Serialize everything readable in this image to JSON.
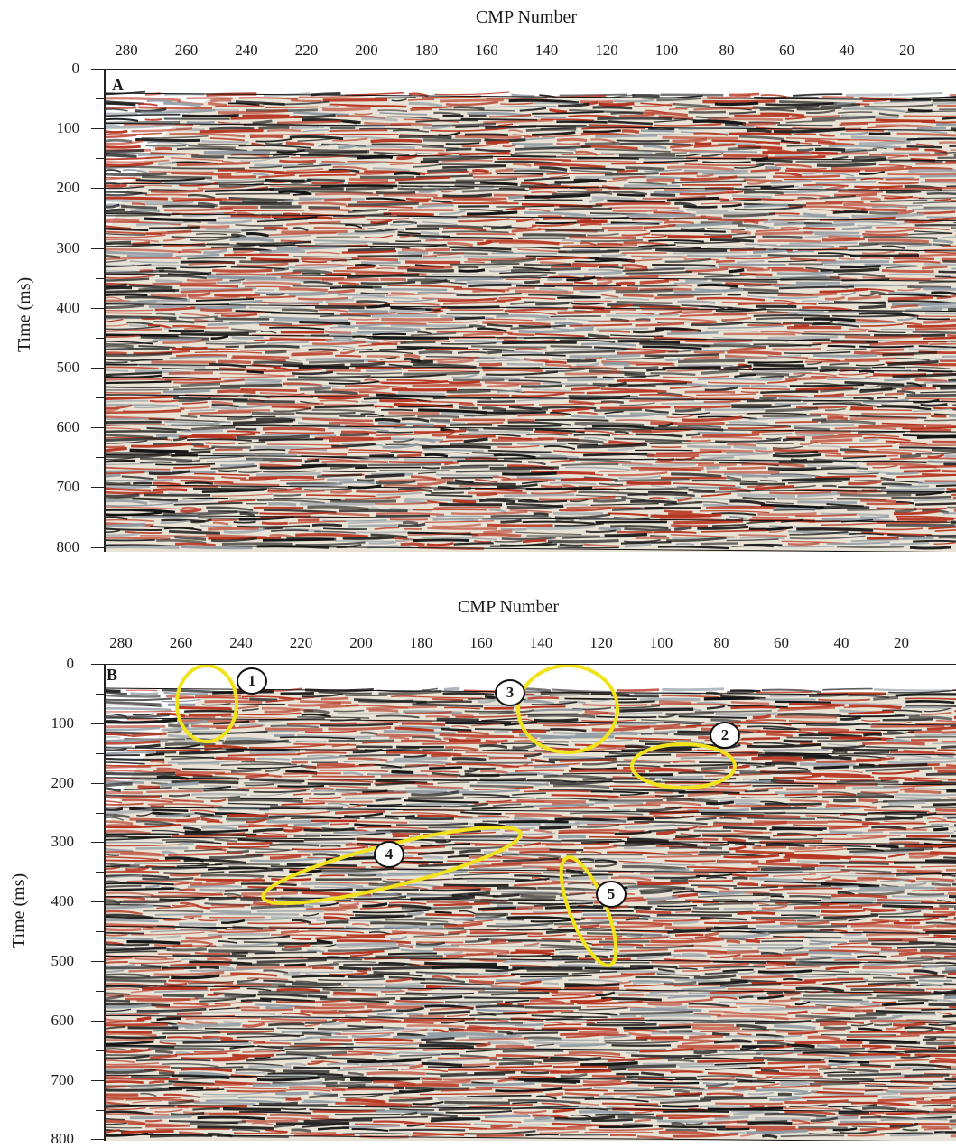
{
  "figure": {
    "panels": [
      {
        "id": "A",
        "label": "A",
        "x_axis_title": "CMP Number",
        "y_axis_title": "Time (ms)",
        "x_ticks": [
          "280",
          "260",
          "240",
          "220",
          "200",
          "180",
          "160",
          "140",
          "120",
          "100",
          "80",
          "60",
          "40",
          "20"
        ],
        "y_ticks": [
          "0",
          "100",
          "200",
          "300",
          "400",
          "500",
          "600",
          "700",
          "800"
        ]
      },
      {
        "id": "B",
        "label": "B",
        "x_axis_title": "CMP Number",
        "y_axis_title": "Time (ms)",
        "x_ticks": [
          "280",
          "260",
          "240",
          "220",
          "200",
          "180",
          "160",
          "140",
          "120",
          "100",
          "80",
          "60",
          "40",
          "20"
        ],
        "y_ticks": [
          "0",
          "100",
          "200",
          "300",
          "400",
          "500",
          "600",
          "700",
          "800"
        ],
        "callouts": [
          "1",
          "2",
          "3",
          "4",
          "5"
        ]
      }
    ],
    "colors": {
      "positive_amplitude": "#b5321e",
      "negative_amplitude": "#141414",
      "background": "#e9e3d6",
      "highlight": "#f2e21c"
    }
  }
}
